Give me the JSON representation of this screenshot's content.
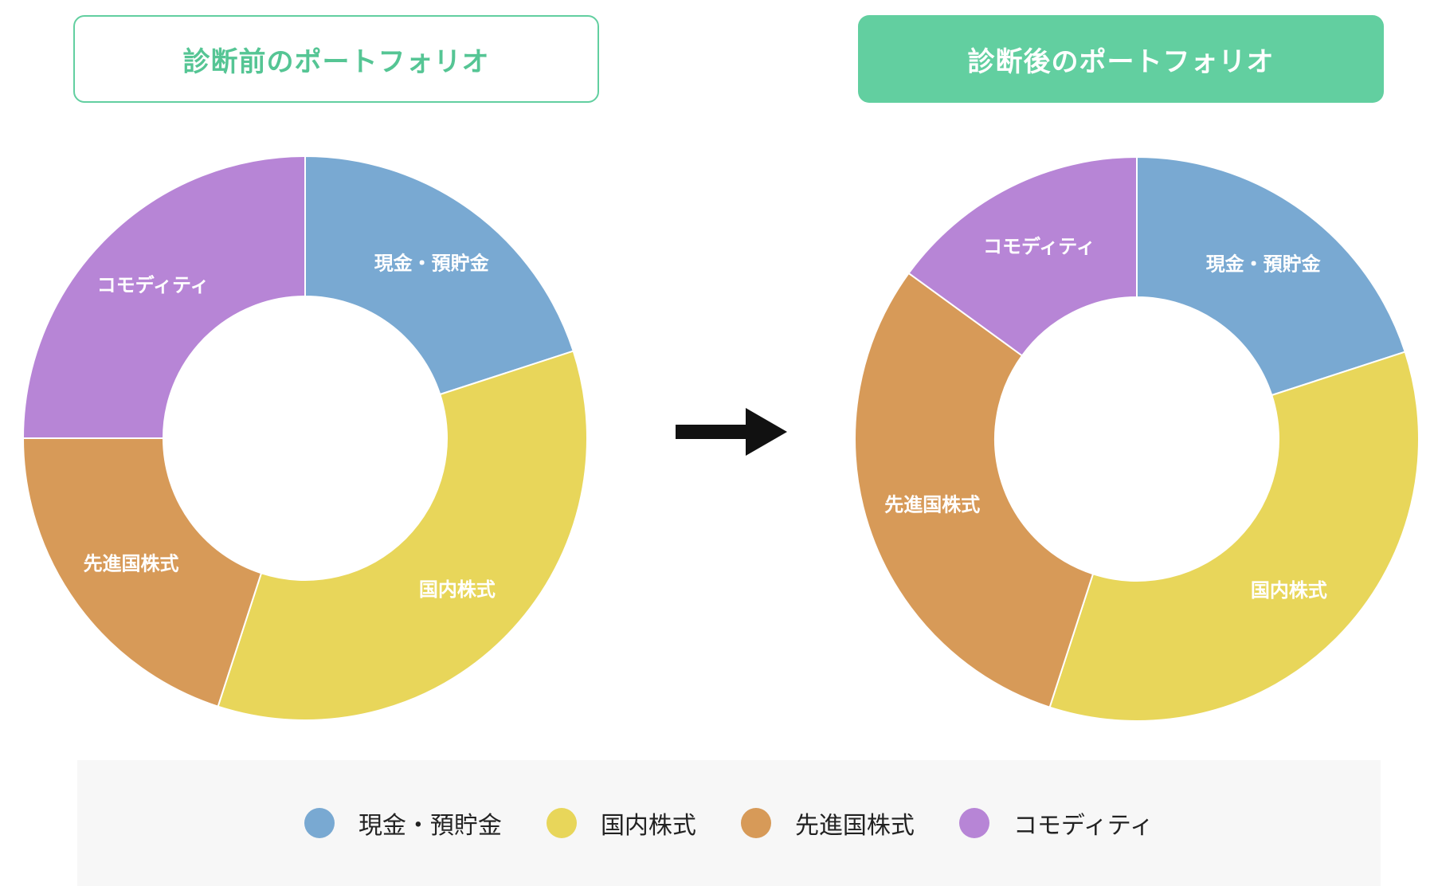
{
  "titles": {
    "before": "診断前のポートフォリオ",
    "after": "診断後のポートフォリオ"
  },
  "arrow_icon": "right-arrow-icon",
  "colors": {
    "accent": "#62cfa0",
    "cash": "#79a9d2",
    "domestic": "#e8d65a",
    "developed": "#d79a58",
    "commodity": "#b785d6"
  },
  "legend": [
    {
      "label": "現金・預貯金",
      "color": "#79a9d2"
    },
    {
      "label": "国内株式",
      "color": "#e8d65a"
    },
    {
      "label": "先進国株式",
      "color": "#d79a58"
    },
    {
      "label": "コモディティ",
      "color": "#b785d6"
    }
  ],
  "chart_data": [
    {
      "type": "pie",
      "title": "診断前のポートフォリオ",
      "categories": [
        "現金・預貯金",
        "国内株式",
        "先進国株式",
        "コモディティ"
      ],
      "values": [
        20,
        35,
        20,
        25
      ],
      "colors": [
        "#79a9d2",
        "#e8d65a",
        "#d79a58",
        "#b785d6"
      ],
      "labels_on_slices": true,
      "legend": "bottom"
    },
    {
      "type": "pie",
      "title": "診断後のポートフォリオ",
      "categories": [
        "現金・預貯金",
        "国内株式",
        "先進国株式",
        "コモディティ"
      ],
      "values": [
        20,
        35,
        30,
        15
      ],
      "colors": [
        "#79a9d2",
        "#e8d65a",
        "#d79a58",
        "#b785d6"
      ],
      "labels_on_slices": true,
      "legend": "bottom"
    }
  ]
}
